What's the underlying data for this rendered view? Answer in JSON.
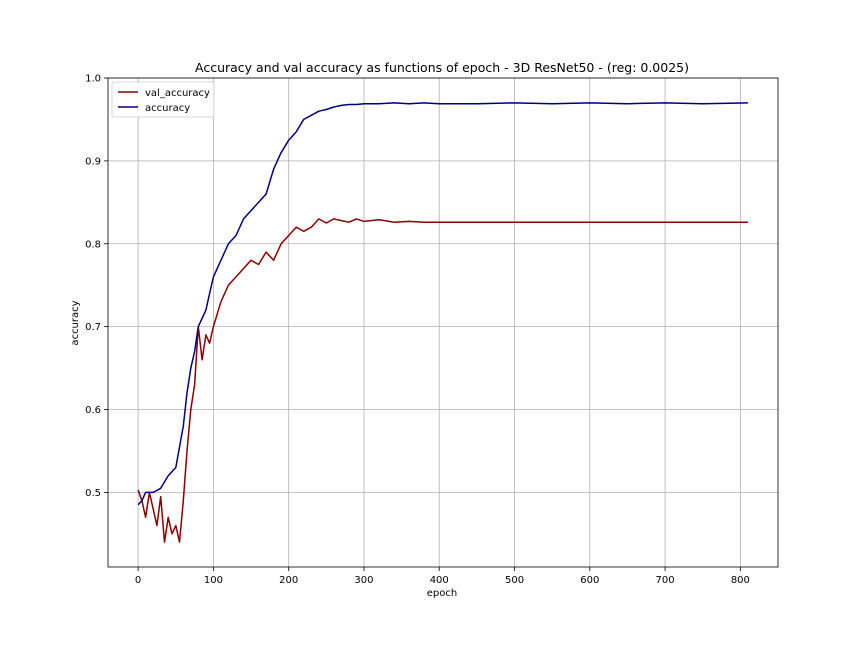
{
  "chart_data": {
    "type": "line",
    "title": "Accuracy and val accuracy as functions of epoch - 3D ResNet50 - (reg: 0.0025)",
    "xlabel": "epoch",
    "ylabel": "accuracy",
    "xlim": [
      -40,
      850
    ],
    "ylim": [
      0.41,
      1.0
    ],
    "xticks": [
      0,
      100,
      200,
      300,
      400,
      500,
      600,
      700,
      800
    ],
    "yticks": [
      0.5,
      0.6,
      0.7,
      0.8,
      0.9,
      1.0
    ],
    "xtick_labels": [
      "0",
      "100",
      "200",
      "300",
      "400",
      "500",
      "600",
      "700",
      "800"
    ],
    "ytick_labels": [
      "0.5",
      "0.6",
      "0.7",
      "0.8",
      "0.9",
      "1.0"
    ],
    "grid": true,
    "legend_position": "top-left",
    "series": [
      {
        "name": "val_accuracy",
        "color": "#8b0000",
        "x": [
          0,
          5,
          10,
          15,
          20,
          25,
          30,
          35,
          40,
          45,
          50,
          55,
          60,
          65,
          70,
          75,
          80,
          85,
          90,
          95,
          100,
          110,
          120,
          130,
          140,
          150,
          160,
          170,
          180,
          190,
          200,
          210,
          220,
          230,
          240,
          250,
          260,
          270,
          280,
          290,
          300,
          320,
          340,
          360,
          380,
          400,
          450,
          500,
          550,
          600,
          650,
          700,
          750,
          810
        ],
        "y": [
          0.503,
          0.49,
          0.47,
          0.5,
          0.48,
          0.46,
          0.495,
          0.44,
          0.47,
          0.45,
          0.46,
          0.44,
          0.49,
          0.55,
          0.6,
          0.63,
          0.7,
          0.66,
          0.69,
          0.68,
          0.7,
          0.73,
          0.75,
          0.76,
          0.77,
          0.78,
          0.775,
          0.79,
          0.78,
          0.8,
          0.81,
          0.82,
          0.815,
          0.82,
          0.83,
          0.825,
          0.83,
          0.828,
          0.826,
          0.83,
          0.827,
          0.829,
          0.826,
          0.827,
          0.826,
          0.826,
          0.826,
          0.826,
          0.826,
          0.826,
          0.826,
          0.826,
          0.826,
          0.826
        ]
      },
      {
        "name": "accuracy",
        "color": "#00007f",
        "x": [
          0,
          5,
          10,
          20,
          30,
          40,
          50,
          60,
          65,
          70,
          75,
          80,
          85,
          90,
          95,
          100,
          110,
          120,
          130,
          140,
          150,
          160,
          170,
          180,
          190,
          200,
          210,
          220,
          230,
          240,
          250,
          260,
          270,
          280,
          290,
          300,
          320,
          340,
          360,
          380,
          400,
          450,
          500,
          550,
          600,
          650,
          700,
          750,
          810
        ],
        "y": [
          0.485,
          0.49,
          0.5,
          0.5,
          0.505,
          0.52,
          0.53,
          0.58,
          0.62,
          0.65,
          0.67,
          0.7,
          0.71,
          0.72,
          0.74,
          0.76,
          0.78,
          0.8,
          0.81,
          0.83,
          0.84,
          0.85,
          0.86,
          0.89,
          0.91,
          0.925,
          0.935,
          0.95,
          0.955,
          0.96,
          0.962,
          0.965,
          0.967,
          0.968,
          0.968,
          0.969,
          0.969,
          0.97,
          0.969,
          0.97,
          0.969,
          0.969,
          0.97,
          0.969,
          0.97,
          0.969,
          0.97,
          0.969,
          0.97
        ]
      }
    ]
  }
}
